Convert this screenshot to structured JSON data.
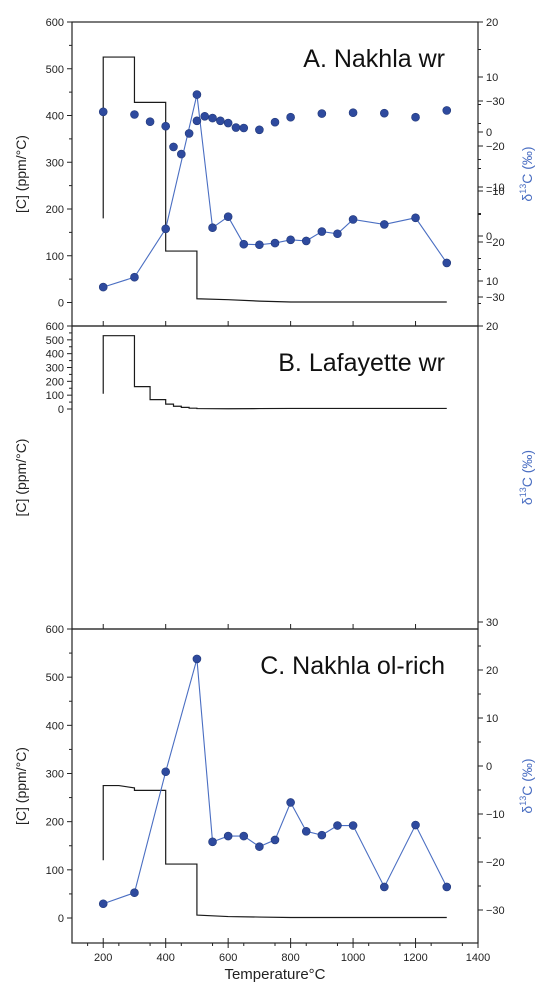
{
  "figure": {
    "x_axis": {
      "label": "Temperature°C",
      "range": [
        100,
        1400
      ],
      "ticks": [
        200,
        400,
        600,
        800,
        1000,
        1200,
        1400
      ]
    },
    "left_axis_label": "[C] (ppm/°C)",
    "right_axis_label": "δ13C (‰)",
    "colors": {
      "step_line": "#1a1a1a",
      "d13c_line": "#4a6ec2",
      "d13c_marker": "#2e4a9e"
    }
  },
  "chart_data": [
    {
      "type": "line",
      "title": "A.  Nakhla wr",
      "xlabel": "Temperature°C",
      "ylabel": "[C] (ppm/°C)",
      "y2label": "δ13C (‰)",
      "xlim": [
        100,
        1400
      ],
      "ylim": [
        -40,
        600
      ],
      "y2lim": [
        -35,
        20
      ],
      "yticks": [
        0,
        100,
        200,
        300,
        400,
        500,
        600
      ],
      "y2ticks": [
        -30,
        -20,
        -10,
        0,
        10,
        20
      ],
      "series": [
        {
          "axis": "left",
          "style": "step",
          "x": [
            200,
            200,
            300,
            300,
            400,
            400,
            500,
            500,
            600,
            700,
            800,
            1300
          ],
          "y": [
            180,
            525,
            525,
            428,
            428,
            110,
            110,
            8,
            6,
            3,
            1,
            1
          ]
        },
        {
          "axis": "right",
          "style": "line-markers",
          "x": [
            200,
            300,
            400,
            500,
            550,
            600,
            650,
            700,
            750,
            800,
            850,
            900,
            950,
            1000,
            1100,
            1200,
            1300
          ],
          "y": [
            -28.2,
            -26.4,
            -17.6,
            6.8,
            -17.4,
            -15.4,
            -20.4,
            -20.5,
            -20.2,
            -19.6,
            -19.8,
            -18.1,
            -18.5,
            -15.9,
            -16.8,
            -15.6,
            -23.8
          ]
        }
      ]
    },
    {
      "type": "line",
      "title": "B.  Lafayette wr",
      "xlabel": "Temperature°C",
      "ylabel": "[C] (ppm/°C)",
      "y2label": "δ13C (‰)",
      "xlim": [
        100,
        1400
      ],
      "ylim": [
        -40,
        600
      ],
      "y2lim": [
        -35,
        20
      ],
      "yticks": [
        0,
        100,
        200,
        300,
        400,
        500,
        600
      ],
      "y2ticks": [
        -30,
        -20,
        -10,
        0,
        10,
        20
      ],
      "series": [
        {
          "axis": "left",
          "style": "step",
          "x": [
            200,
            200,
            300,
            300,
            350,
            350,
            400,
            400,
            425,
            425,
            450,
            450,
            475,
            475,
            500,
            500,
            600,
            700,
            800,
            1300
          ],
          "y": [
            110,
            530,
            530,
            162,
            162,
            68,
            68,
            35,
            35,
            20,
            20,
            12,
            12,
            6,
            6,
            3,
            2,
            3,
            4,
            4
          ]
        },
        {
          "axis": "right",
          "style": "line-markers",
          "x": [
            200,
            300,
            350,
            400,
            425,
            450,
            475,
            500,
            525,
            550,
            575,
            600,
            625,
            650,
            700,
            750,
            800,
            900,
            1000,
            1100,
            1200,
            1300
          ],
          "y": [
            -27.6,
            -27.0,
            -25.4,
            -24.4,
            -19.8,
            -18.2,
            -22.8,
            -25.6,
            -26.6,
            -26.2,
            -25.6,
            -25.1,
            -24.1,
            -24.0,
            -23.6,
            -25.3,
            -26.4,
            -27.2,
            -27.4,
            -27.3,
            -26.4,
            -27.9
          ]
        }
      ]
    },
    {
      "type": "line",
      "title": "C.  Nakhla ol-rich",
      "xlabel": "Temperature°C",
      "ylabel": "[C] (ppm/°C)",
      "y2label": "δ13C (‰)",
      "xlim": [
        100,
        1400
      ],
      "ylim": [
        -40,
        600
      ],
      "y2lim": [
        -35,
        30
      ],
      "yticks": [
        0,
        100,
        200,
        300,
        400,
        500,
        600
      ],
      "y2ticks": [
        -30,
        -20,
        -10,
        0,
        10,
        20,
        30
      ],
      "series": [
        {
          "axis": "left",
          "style": "step",
          "x": [
            200,
            200,
            250,
            300,
            300,
            400,
            400,
            500,
            500,
            600,
            700,
            800,
            1300
          ],
          "y": [
            120,
            275,
            275,
            270,
            265,
            265,
            112,
            112,
            6,
            3,
            2,
            1,
            1
          ]
        },
        {
          "axis": "right",
          "style": "line-markers",
          "x": [
            200,
            300,
            400,
            500,
            550,
            600,
            650,
            700,
            750,
            800,
            850,
            900,
            950,
            1000,
            1100,
            1200,
            1300
          ],
          "y": [
            -28.7,
            -26.4,
            -1.2,
            22.3,
            -15.8,
            -14.6,
            -14.6,
            -16.8,
            -15.4,
            -7.6,
            -13.6,
            -14.4,
            -12.4,
            -12.4,
            -25.2,
            -12.3,
            -25.2
          ]
        }
      ]
    }
  ]
}
